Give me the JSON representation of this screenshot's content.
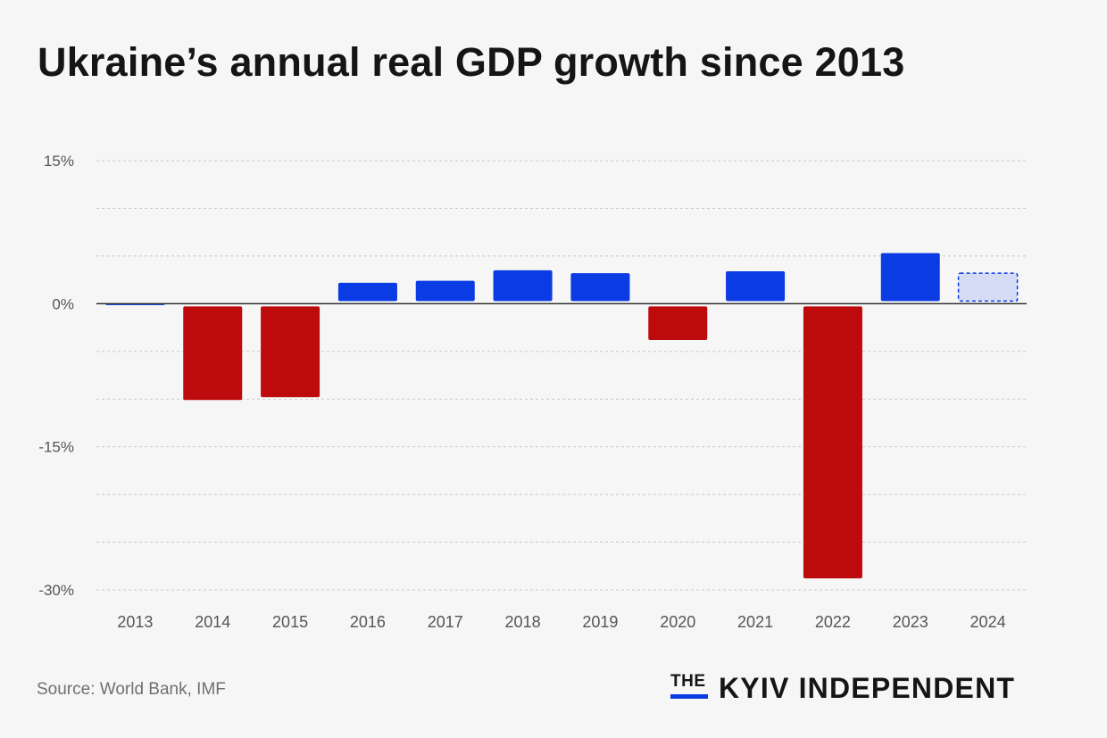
{
  "title": "Ukraine’s annual real GDP growth since 2013",
  "source": "Source: World Bank, IMF",
  "logo": {
    "prefix": "THE",
    "name": "KYIV INDEPENDENT"
  },
  "colors": {
    "negative": "#bd0a0d",
    "positive": "#0a3be3",
    "forecast_fill": "#d6dcf6",
    "forecast_stroke": "#0a3be3",
    "grid": "#c8c8c8",
    "axis": "#222222",
    "tick_text": "#555555",
    "brand_accent": "#0a3be3"
  },
  "chart_data": {
    "type": "bar",
    "title": "Ukraine’s annual real GDP growth since 2013",
    "xlabel": "",
    "ylabel": "",
    "categories": [
      "2013",
      "2014",
      "2015",
      "2016",
      "2017",
      "2018",
      "2019",
      "2020",
      "2021",
      "2022",
      "2023",
      "2024"
    ],
    "values": [
      0.0,
      -10.1,
      -9.8,
      2.2,
      2.4,
      3.5,
      3.2,
      -3.8,
      3.4,
      -28.8,
      5.3,
      3.2
    ],
    "forecast": [
      false,
      false,
      false,
      false,
      false,
      false,
      false,
      false,
      false,
      false,
      false,
      true
    ],
    "ylim": [
      -30,
      15
    ],
    "yticks": [
      15,
      0,
      -15,
      -30
    ],
    "ytick_labels": [
      "15%",
      "0%",
      "-15%",
      "-30%"
    ],
    "minor_gridlines": [
      10,
      5,
      -5,
      -10,
      -20,
      -25
    ],
    "grid": true
  }
}
